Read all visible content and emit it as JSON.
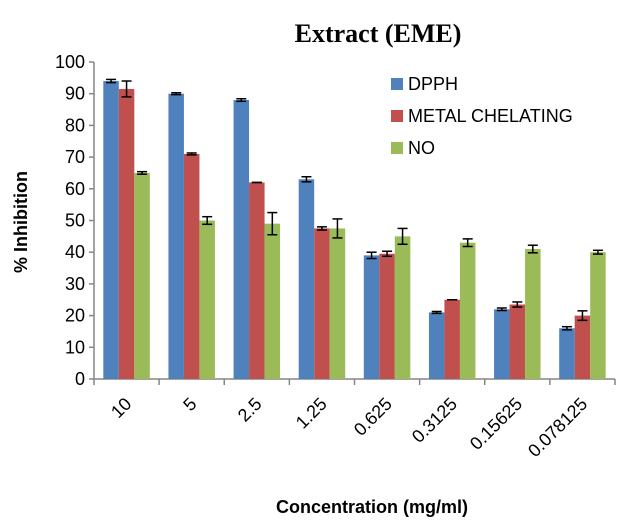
{
  "chart_data": {
    "type": "bar",
    "title": "Extract (EME)",
    "xlabel": "Concentration (mg/ml)",
    "ylabel": "% Inhibition",
    "ylim": [
      0,
      100
    ],
    "yticks": [
      0,
      10,
      20,
      30,
      40,
      50,
      60,
      70,
      80,
      90,
      100
    ],
    "categories": [
      "10",
      "5",
      "2.5",
      "1.25",
      "0.625",
      "0.3125",
      "0.15625",
      "0.078125"
    ],
    "series": [
      {
        "name": "DPPH",
        "color": "#4f81bd",
        "values": [
          94,
          90,
          88,
          63,
          39,
          21,
          22,
          16
        ],
        "errors": [
          0.5,
          0.3,
          0.4,
          0.8,
          1.0,
          0.3,
          0.4,
          0.5
        ]
      },
      {
        "name": "METAL CHELATING",
        "color": "#c0504d",
        "values": [
          91.5,
          71,
          62,
          47.5,
          39.5,
          25,
          23.5,
          20
        ],
        "errors": [
          2.5,
          0.3,
          0,
          0.5,
          0.8,
          0,
          0.8,
          1.5
        ]
      },
      {
        "name": "NO",
        "color": "#9bbb59",
        "values": [
          65,
          50,
          49,
          47.5,
          45,
          43,
          41,
          40
        ],
        "errors": [
          0.4,
          1.2,
          3.5,
          3.0,
          2.5,
          1.2,
          1.2,
          0.6
        ]
      }
    ],
    "legend_position": "top-right",
    "grid": false
  }
}
